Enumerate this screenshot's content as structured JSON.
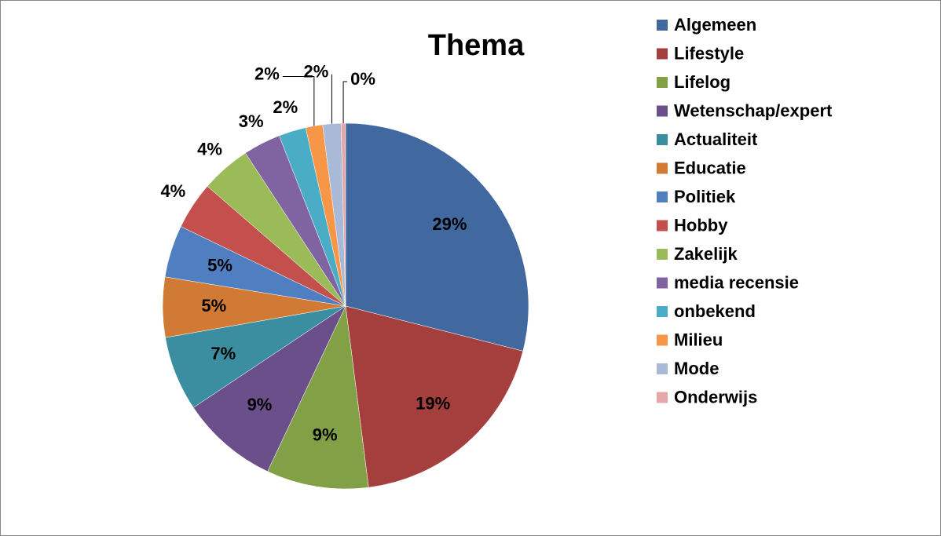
{
  "chart_data": {
    "type": "pie",
    "title": "Thema",
    "categories": [
      "Algemeen",
      "Lifestyle",
      "Lifelog",
      "Wetenschap/expert",
      "Actualiteit",
      "Educatie",
      "Politiek",
      "Hobby",
      "Zakelijk",
      "media recensie",
      "onbekend",
      "Milieu",
      "Mode",
      "Onderwijs"
    ],
    "values": [
      28.9,
      19.0,
      9.0,
      8.6,
      6.6,
      5.3,
      4.6,
      4.2,
      4.4,
      3.3,
      2.4,
      1.5,
      1.6,
      0.4
    ],
    "value_labels": [
      "29%",
      "19%",
      "9%",
      "9%",
      "7%",
      "5%",
      "5%",
      "4%",
      "4%",
      "3%",
      "2%",
      "2%",
      "2%",
      "0%"
    ],
    "colors": [
      "#4169a0",
      "#a43f3d",
      "#82a045",
      "#6b4f8a",
      "#3a8ea0",
      "#d07a35",
      "#4f7fc1",
      "#c4504d",
      "#9bbb59",
      "#8064a2",
      "#4bacc6",
      "#f79646",
      "#a9b9d8",
      "#e4a8a8"
    ],
    "legend": "right"
  }
}
